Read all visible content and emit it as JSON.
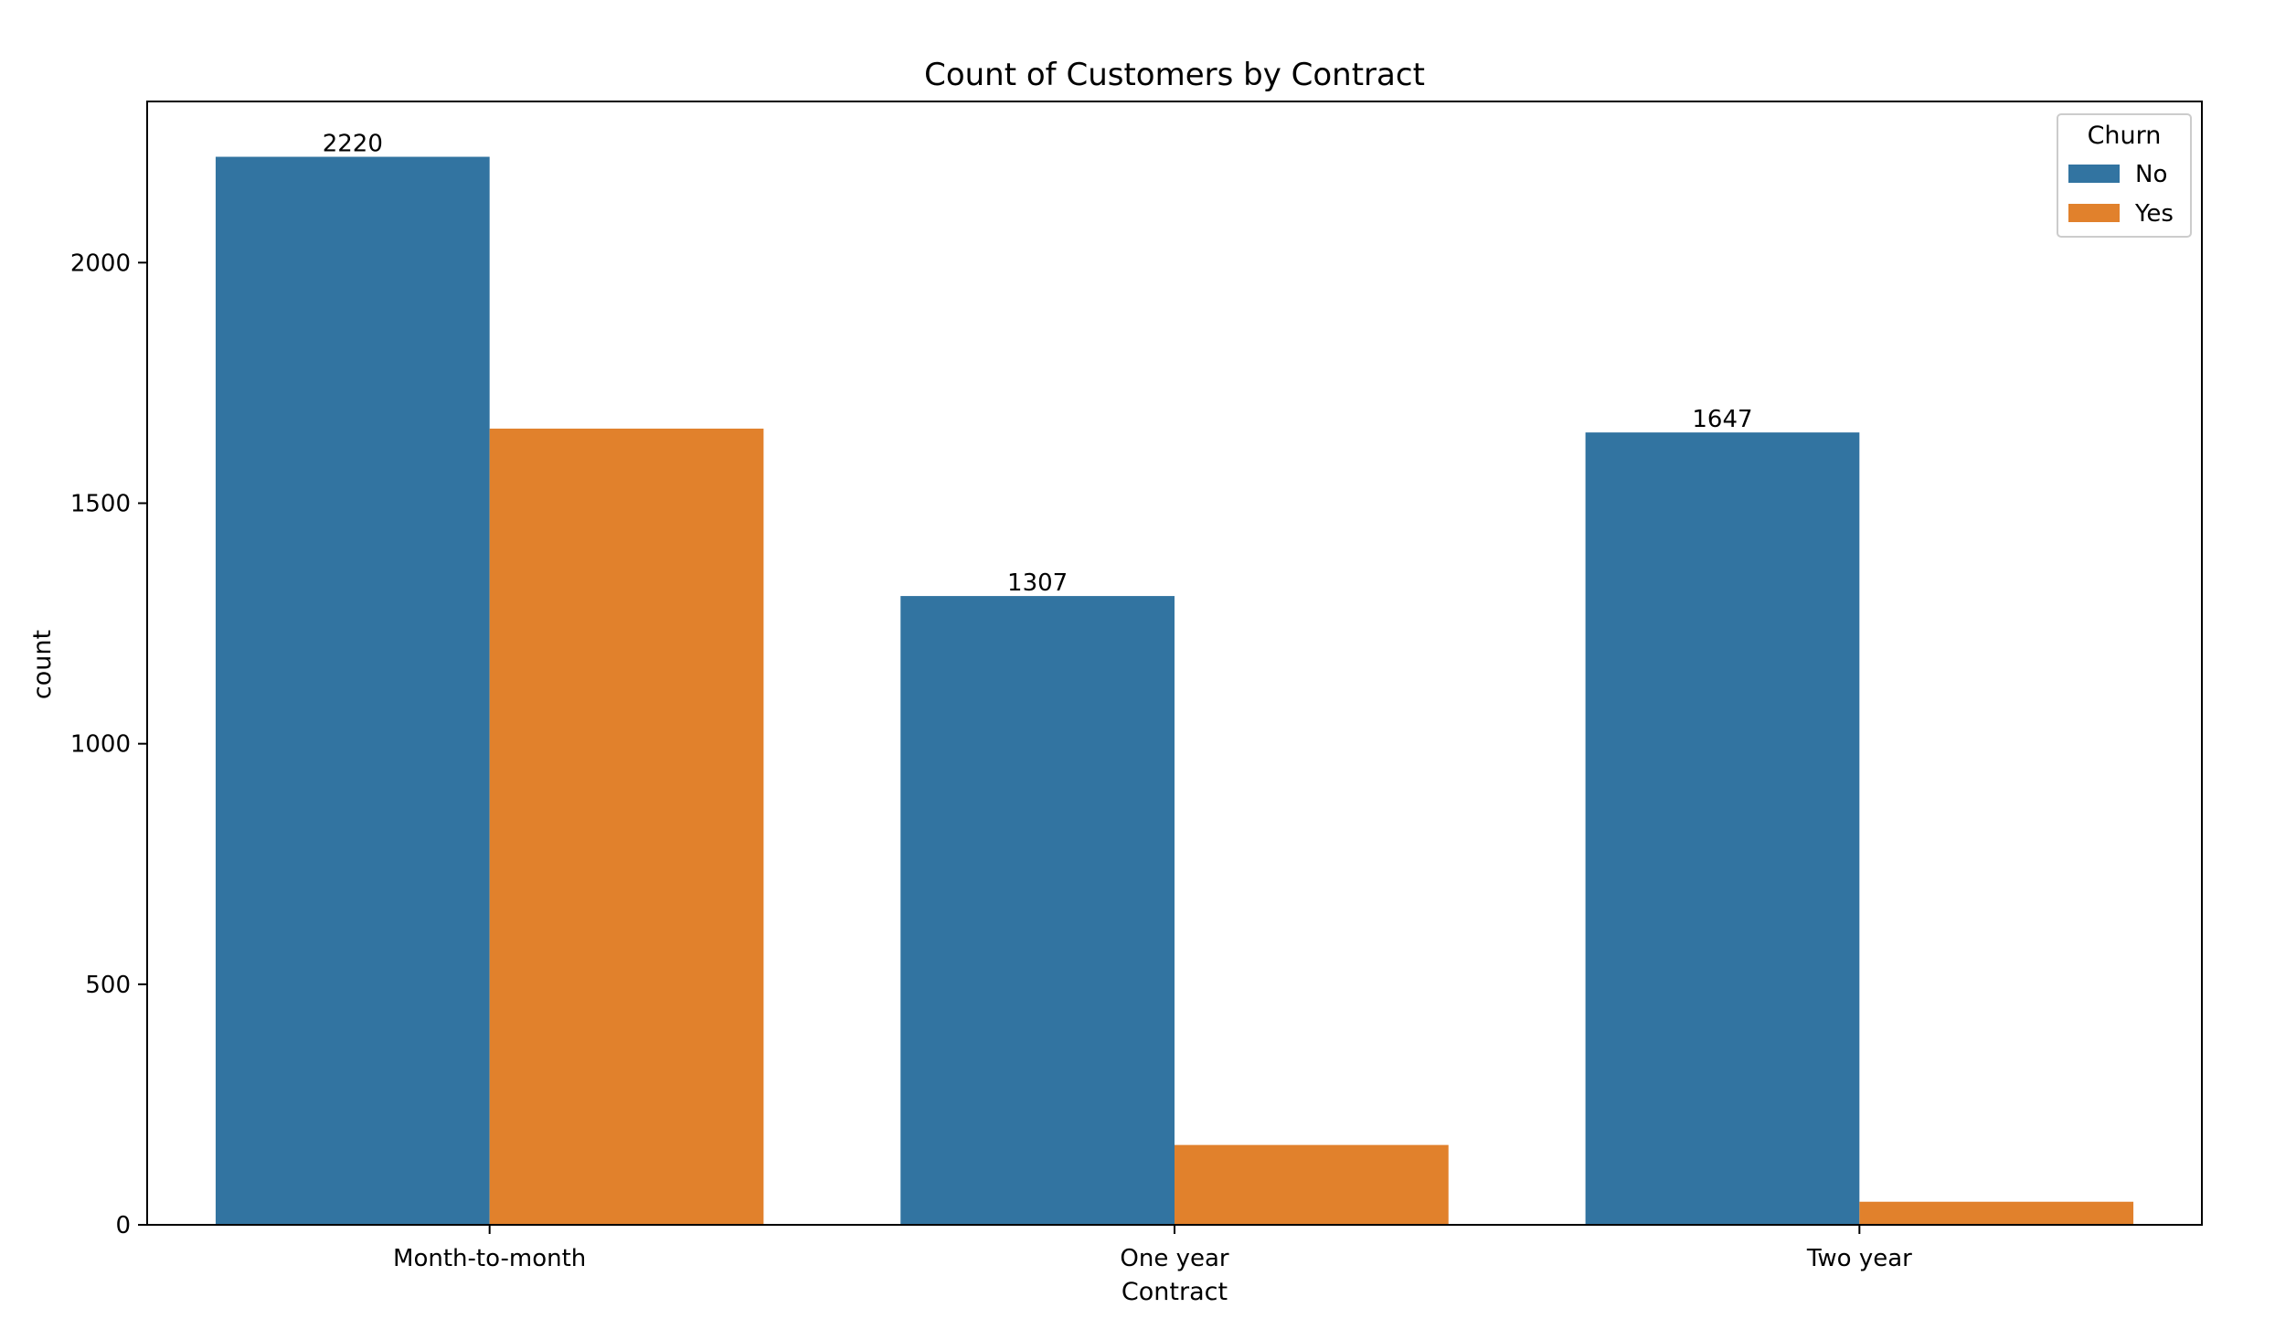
{
  "chart_data": {
    "type": "bar",
    "title": "Count of Customers by Contract",
    "xlabel": "Contract",
    "ylabel": "count",
    "categories": [
      "Month-to-month",
      "One year",
      "Two year"
    ],
    "series": [
      {
        "name": "No",
        "color": "#3274a1",
        "values": [
          2220,
          1307,
          1647
        ]
      },
      {
        "name": "Yes",
        "color": "#e1812c",
        "values": [
          1655,
          166,
          48
        ]
      }
    ],
    "data_labels": [
      "2220",
      "1307",
      "1647"
    ],
    "ylim": [
      0,
      2335
    ],
    "yticks": [
      0,
      500,
      1000,
      1500,
      2000
    ],
    "grid": false,
    "legend": {
      "title": "Churn",
      "position": "top-right"
    }
  }
}
